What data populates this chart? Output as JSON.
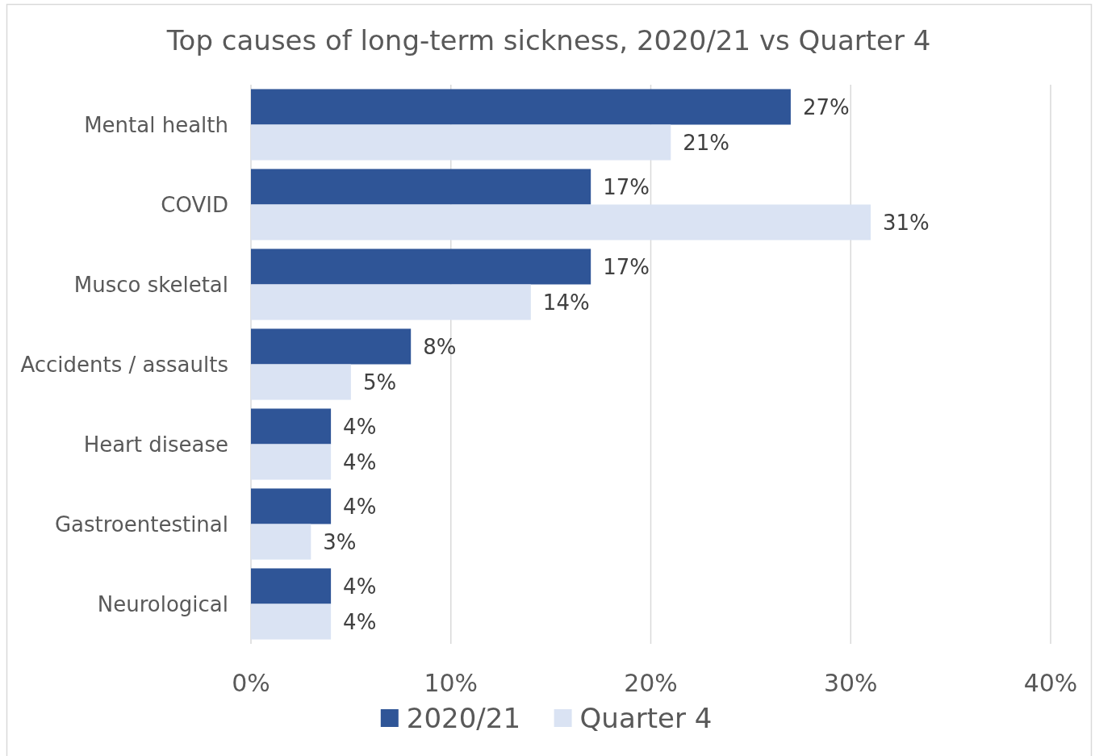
{
  "chart_data": {
    "type": "bar",
    "orientation": "horizontal",
    "title": "Top causes of long-term sickness, 2020/21 vs Quarter 4",
    "categories": [
      "Mental health",
      "COVID",
      "Musco skeletal",
      "Accidents / assaults",
      "Heart disease",
      "Gastroentestinal",
      "Neurological"
    ],
    "series": [
      {
        "name": "2020/21",
        "color": "#2f5597",
        "values": [
          27,
          17,
          17,
          8,
          4,
          4,
          4
        ],
        "value_labels": [
          "27%",
          "17%",
          "17%",
          "8%",
          "4%",
          "4%",
          "4%"
        ]
      },
      {
        "name": "Quarter 4",
        "color": "#dae3f3",
        "values": [
          21,
          31,
          14,
          5,
          4,
          3,
          4
        ],
        "value_labels": [
          "21%",
          "31%",
          "14%",
          "5%",
          "4%",
          "3%",
          "4%"
        ]
      }
    ],
    "xlim": [
      0,
      40
    ],
    "xticks": [
      {
        "value": 0,
        "label": "0%"
      },
      {
        "value": 10,
        "label": "10%"
      },
      {
        "value": 20,
        "label": "20%"
      },
      {
        "value": 30,
        "label": "30%"
      },
      {
        "value": 40,
        "label": "40%"
      }
    ],
    "grid": "x",
    "legend": "bottom"
  }
}
